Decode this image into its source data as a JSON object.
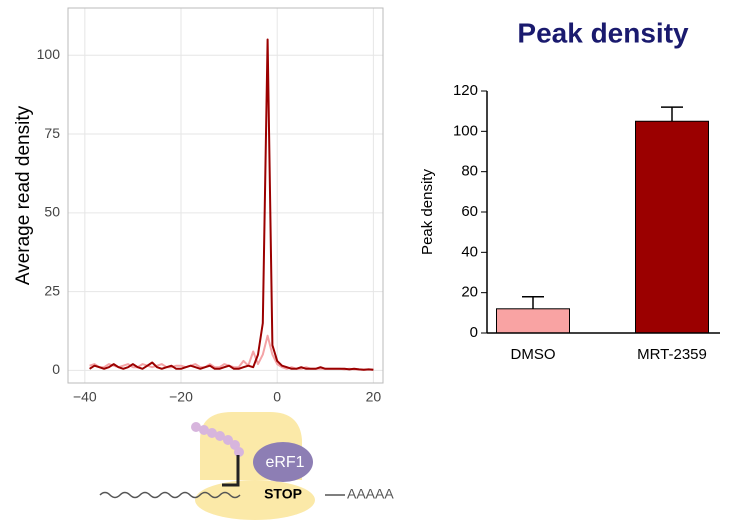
{
  "chart_data": [
    {
      "type": "line",
      "y_label": "Average read density",
      "x": [
        -39,
        -38,
        -37,
        -36,
        -35,
        -34,
        -33,
        -32,
        -31,
        -30,
        -29,
        -28,
        -27,
        -26,
        -25,
        -24,
        -23,
        -22,
        -21,
        -20,
        -19,
        -18,
        -17,
        -16,
        -15,
        -14,
        -13,
        -12,
        -11,
        -10,
        -9,
        -8,
        -7,
        -6,
        -5,
        -4,
        -3,
        -2,
        -1,
        0,
        1,
        2,
        3,
        4,
        5,
        6,
        7,
        8,
        9,
        10,
        11,
        12,
        13,
        14,
        15,
        16,
        17,
        18,
        19,
        20
      ],
      "series": [
        {
          "color": "#f4a3a6",
          "values": [
            1.5,
            2,
            1,
            1,
            2,
            1.5,
            1,
            1.5,
            2,
            1,
            1,
            2,
            1.5,
            1,
            1.5,
            2,
            1,
            1,
            1.5,
            1.5,
            1,
            1.5,
            2,
            1,
            1,
            2,
            1,
            1,
            2,
            1.5,
            1,
            1,
            3,
            1.5,
            6,
            2,
            5,
            11,
            5,
            2,
            1,
            0.5,
            1,
            0.5,
            0.5,
            1,
            0.5,
            0.5,
            0.5,
            0.5,
            0.5,
            0.5,
            0.5,
            0.3,
            0.5,
            0.3,
            0.3,
            0.2,
            0.3,
            0.2
          ]
        },
        {
          "color": "#9b0000",
          "values": [
            0.5,
            1.5,
            1,
            0.5,
            1,
            2,
            1,
            0.5,
            1,
            2,
            1,
            0.5,
            1.5,
            2.5,
            1,
            0.5,
            1,
            1.5,
            0.5,
            0.5,
            1,
            1.5,
            1,
            0.5,
            1,
            1.5,
            0.5,
            0.5,
            1,
            1.5,
            0.5,
            0.5,
            1,
            1.5,
            1,
            5,
            15,
            105,
            8,
            3,
            1.5,
            1,
            0.5,
            0.5,
            1,
            0.5,
            0.5,
            0.5,
            1,
            0.5,
            0.5,
            0.5,
            0.5,
            0.5,
            0.3,
            0.5,
            0.3,
            0.2,
            0.3,
            0.2
          ]
        }
      ],
      "xlim": [
        -43.5,
        22
      ],
      "xticks": [
        {
          "value": -40,
          "label": "−40"
        },
        {
          "value": -20,
          "label": "−20"
        },
        0,
        20
      ],
      "ylim": [
        -4,
        115
      ],
      "yticks": [
        0,
        25,
        50,
        75,
        100
      ],
      "grid": true
    },
    {
      "type": "bar",
      "title": "Peak density",
      "y_label": "Peak density",
      "categories": [
        "DMSO",
        "MRT-2359"
      ],
      "values": [
        12,
        105
      ],
      "errors": [
        6,
        7
      ],
      "colors": [
        "#f9a3a3",
        "#9b0000"
      ],
      "ylim": [
        0,
        120
      ],
      "yticks": [
        0,
        20,
        40,
        60,
        80,
        100,
        120
      ],
      "grid": false
    }
  ],
  "diagram": {
    "protein": "eRF1",
    "codon": "STOP",
    "tail": "AAAAA"
  }
}
